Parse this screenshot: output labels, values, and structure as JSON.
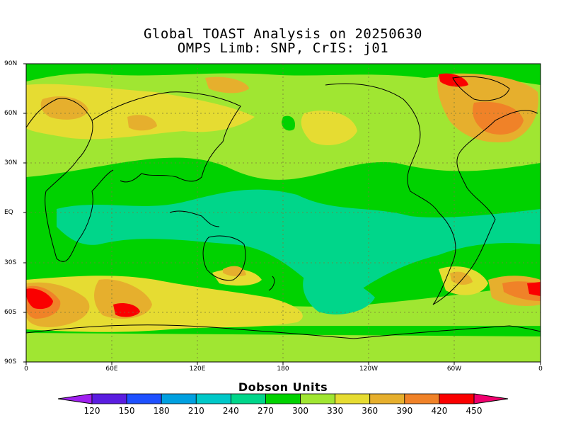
{
  "title_line1": "Global TOAST Analysis on 20250630",
  "title_line2": "OMPS Limb: SNP,  CrIS: j01",
  "lat_labels": [
    "90N",
    "60N",
    "30N",
    "EQ",
    "30S",
    "60S",
    "90S"
  ],
  "lon_labels": [
    "0",
    "60E",
    "120E",
    "180",
    "120W",
    "60W",
    "0"
  ],
  "colorbar": {
    "title": "Dobson Units",
    "ticks": [
      "120",
      "150",
      "180",
      "210",
      "240",
      "270",
      "300",
      "330",
      "360",
      "390",
      "420",
      "450"
    ],
    "colors": [
      "#a020f0",
      "#5a1de0",
      "#1e50ff",
      "#00a0e0",
      "#00c8c8",
      "#00d68a",
      "#00d200",
      "#a0e632",
      "#e6dc32",
      "#e6af2d",
      "#f08228",
      "#fa0000",
      "#f0006e"
    ]
  },
  "map_palette": {
    "ocean_tropics": "#00d68a",
    "green": "#00d200",
    "light_green": "#a0e632",
    "yellow": "#e6dc32",
    "gold": "#e6af2d",
    "orange": "#f08228",
    "red": "#fa0000"
  }
}
